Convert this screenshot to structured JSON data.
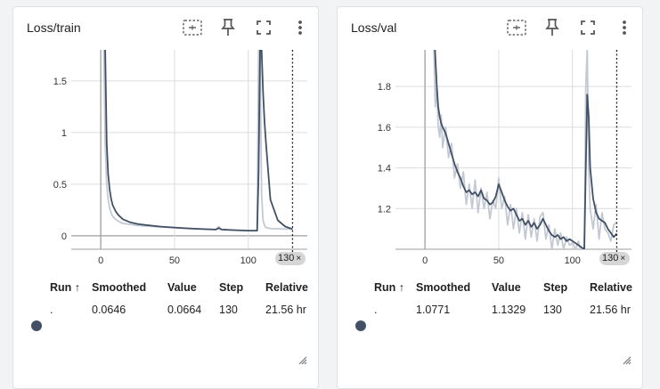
{
  "chart_data": [
    {
      "type": "line",
      "title": "Loss/train",
      "xlim": [
        -20,
        140
      ],
      "ylim": [
        -0.13,
        1.8
      ],
      "xticks": [
        0,
        50,
        100
      ],
      "yticks": [
        0,
        0.5,
        1,
        1.5
      ],
      "xtick_labels": [
        "0",
        "50",
        "100"
      ],
      "ytick_labels": [
        "0",
        "0.5",
        "1",
        "1.5"
      ],
      "cursor_step": 130,
      "smoothed_color": "#425066",
      "raw_color": "#c3c9d4",
      "series": [
        {
          "role": "smoothed",
          "x": [
            2,
            3,
            4,
            5,
            6,
            7,
            8,
            10,
            12,
            15,
            20,
            25,
            30,
            40,
            50,
            60,
            70,
            78,
            80,
            82,
            90,
            100,
            106,
            107,
            108,
            109,
            110,
            111,
            112,
            115,
            120,
            125,
            130
          ],
          "y": [
            2.3,
            1.8,
            0.9,
            0.6,
            0.45,
            0.36,
            0.3,
            0.24,
            0.2,
            0.16,
            0.13,
            0.115,
            0.105,
            0.09,
            0.08,
            0.072,
            0.065,
            0.06,
            0.075,
            0.06,
            0.055,
            0.05,
            0.05,
            0.6,
            1.8,
            1.8,
            1.4,
            1.1,
            0.9,
            0.35,
            0.15,
            0.09,
            0.0646
          ]
        },
        {
          "role": "raw",
          "x": [
            2,
            3,
            4,
            5,
            6,
            7,
            8,
            10,
            12,
            15,
            20,
            25,
            30,
            40,
            50,
            60,
            70,
            78,
            80,
            82,
            90,
            100,
            106,
            107,
            108,
            109,
            110,
            111,
            112,
            115,
            120,
            125,
            130
          ],
          "y": [
            1.9,
            0.9,
            0.5,
            0.35,
            0.27,
            0.22,
            0.19,
            0.16,
            0.14,
            0.12,
            0.11,
            0.1,
            0.095,
            0.085,
            0.078,
            0.07,
            0.064,
            0.06,
            0.09,
            0.06,
            0.055,
            0.05,
            0.05,
            1.8,
            1.8,
            0.4,
            0.15,
            0.1,
            0.08,
            0.07,
            0.068,
            0.066,
            0.0664
          ]
        }
      ]
    },
    {
      "type": "line",
      "title": "Loss/val",
      "xlim": [
        -20,
        140
      ],
      "ylim": [
        1.0,
        1.98
      ],
      "xticks": [
        0,
        50,
        100
      ],
      "yticks": [
        1.2,
        1.4,
        1.6,
        1.8
      ],
      "xtick_labels": [
        "0",
        "50",
        "100"
      ],
      "ytick_labels": [
        "1.2",
        "1.4",
        "1.6",
        "1.8"
      ],
      "cursor_step": 130,
      "smoothed_color": "#425066",
      "raw_color": "#c3c9d4",
      "series": [
        {
          "role": "smoothed",
          "x": [
            6,
            7,
            8,
            9,
            10,
            11,
            12,
            14,
            16,
            18,
            20,
            22,
            24,
            26,
            28,
            30,
            32,
            34,
            36,
            38,
            40,
            42,
            44,
            46,
            48,
            50,
            52,
            54,
            56,
            58,
            60,
            62,
            64,
            66,
            68,
            70,
            72,
            74,
            76,
            78,
            80,
            82,
            84,
            86,
            88,
            90,
            92,
            94,
            96,
            98,
            100,
            102,
            104,
            106,
            108,
            109,
            110,
            111,
            112,
            114,
            116,
            118,
            120,
            122,
            124,
            126,
            128,
            130
          ],
          "y": [
            2.1,
            1.95,
            1.8,
            1.7,
            1.65,
            1.62,
            1.6,
            1.57,
            1.52,
            1.47,
            1.42,
            1.38,
            1.35,
            1.31,
            1.28,
            1.29,
            1.27,
            1.28,
            1.26,
            1.29,
            1.25,
            1.24,
            1.22,
            1.23,
            1.26,
            1.32,
            1.28,
            1.24,
            1.21,
            1.19,
            1.2,
            1.17,
            1.14,
            1.15,
            1.12,
            1.14,
            1.11,
            1.13,
            1.1,
            1.12,
            1.15,
            1.12,
            1.09,
            1.07,
            1.06,
            1.07,
            1.05,
            1.06,
            1.04,
            1.05,
            1.04,
            1.03,
            1.02,
            1.01,
            1.0,
            1.4,
            1.76,
            1.65,
            1.4,
            1.25,
            1.18,
            1.15,
            1.14,
            1.13,
            1.1,
            1.08,
            1.06,
            1.0771
          ]
        },
        {
          "role": "raw",
          "x": [
            6,
            7,
            8,
            9,
            10,
            11,
            12,
            14,
            16,
            18,
            20,
            22,
            24,
            26,
            28,
            30,
            32,
            34,
            36,
            38,
            40,
            42,
            44,
            46,
            48,
            50,
            52,
            54,
            56,
            58,
            60,
            62,
            64,
            66,
            68,
            70,
            72,
            74,
            76,
            78,
            80,
            82,
            84,
            86,
            88,
            90,
            92,
            94,
            96,
            98,
            100,
            102,
            104,
            106,
            108,
            109,
            110,
            111,
            112,
            114,
            116,
            118,
            120,
            122,
            124,
            126,
            128,
            130
          ],
          "y": [
            2.0,
            1.7,
            1.8,
            1.6,
            1.55,
            1.66,
            1.5,
            1.6,
            1.45,
            1.52,
            1.35,
            1.42,
            1.3,
            1.38,
            1.22,
            1.32,
            1.2,
            1.34,
            1.18,
            1.3,
            1.2,
            1.28,
            1.15,
            1.24,
            1.2,
            1.35,
            1.2,
            1.26,
            1.12,
            1.22,
            1.1,
            1.2,
            1.08,
            1.18,
            1.05,
            1.17,
            1.06,
            1.15,
            1.04,
            1.16,
            1.18,
            1.05,
            1.12,
            1.0,
            1.1,
            1.02,
            1.08,
            1.0,
            1.06,
            1.02,
            1.03,
            1.0,
            1.04,
            0.98,
            1.0,
            1.8,
            1.98,
            1.4,
            1.2,
            1.1,
            1.22,
            1.05,
            1.18,
            1.1,
            1.08,
            1.04,
            1.12,
            1.1329
          ]
        }
      ]
    }
  ],
  "cards": [
    {
      "title": "Loss/train",
      "table": {
        "headers": [
          "Run",
          "Smoothed",
          "Value",
          "Step",
          "Relative"
        ],
        "sort_arrow": "↑",
        "row": {
          "run": ".",
          "smoothed": "0.0646",
          "value": "0.0664",
          "step": "130",
          "relative": "21.56 hr"
        }
      },
      "step_chip": "130"
    },
    {
      "title": "Loss/val",
      "table": {
        "headers": [
          "Run",
          "Smoothed",
          "Value",
          "Step",
          "Relative"
        ],
        "sort_arrow": "↑",
        "row": {
          "run": ".",
          "smoothed": "1.0771",
          "value": "1.1329",
          "step": "130",
          "relative": "21.56 hr"
        }
      },
      "step_chip": "130"
    }
  ],
  "icons": {
    "fit": "fit-domain-icon",
    "pin": "pin-icon",
    "fullscreen": "fullscreen-icon",
    "more": "more-vert-icon",
    "close": "×"
  }
}
